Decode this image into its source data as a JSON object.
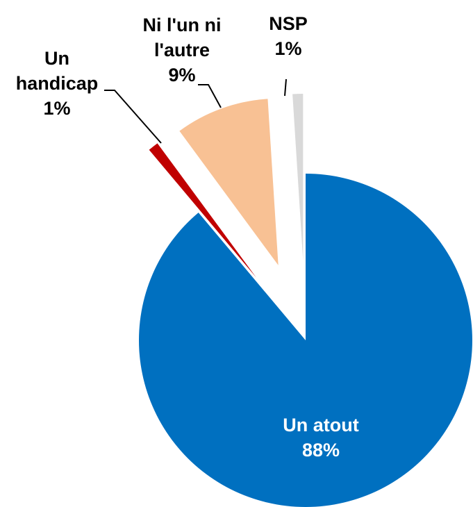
{
  "chart_data": {
    "type": "pie",
    "categories": [
      "Un atout",
      "Un handicap",
      "Ni l'un ni l'autre",
      "NSP"
    ],
    "values": [
      88,
      1,
      9,
      1
    ],
    "value_labels": [
      "88%",
      "1%",
      "9%",
      "1%"
    ],
    "colors": [
      "#0070c0",
      "#c00000",
      "#f8c194",
      "#d9d9d9"
    ]
  }
}
